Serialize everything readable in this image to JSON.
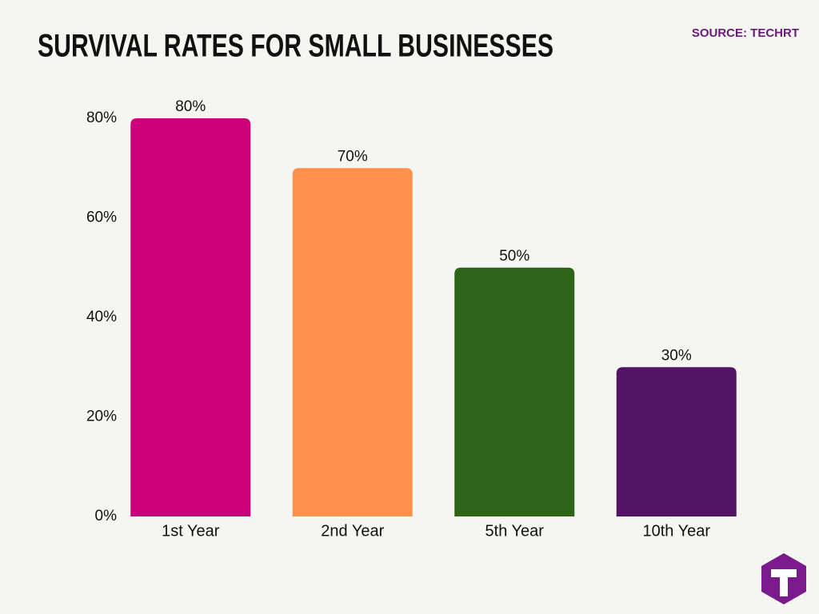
{
  "chart_data": {
    "type": "bar",
    "title": "SURVIVAL RATES FOR SMALL BUSINESSES",
    "subtitle": "SOURCE: TECHRT",
    "categories": [
      "1st Year",
      "2nd Year",
      "5th Year",
      "10th Year"
    ],
    "values": [
      80,
      70,
      50,
      30
    ],
    "value_labels": [
      "80%",
      "70%",
      "50%",
      "30%"
    ],
    "colors": [
      "#cc007a",
      "#ff914d",
      "#2e6418",
      "#541466"
    ],
    "ylim": [
      0,
      80
    ],
    "yticks": [
      {
        "value": 0,
        "label": "0%"
      },
      {
        "value": 20,
        "label": "20%"
      },
      {
        "value": 40,
        "label": "40%"
      },
      {
        "value": 60,
        "label": "60%"
      },
      {
        "value": 80,
        "label": "80%"
      }
    ],
    "grid": false
  }
}
